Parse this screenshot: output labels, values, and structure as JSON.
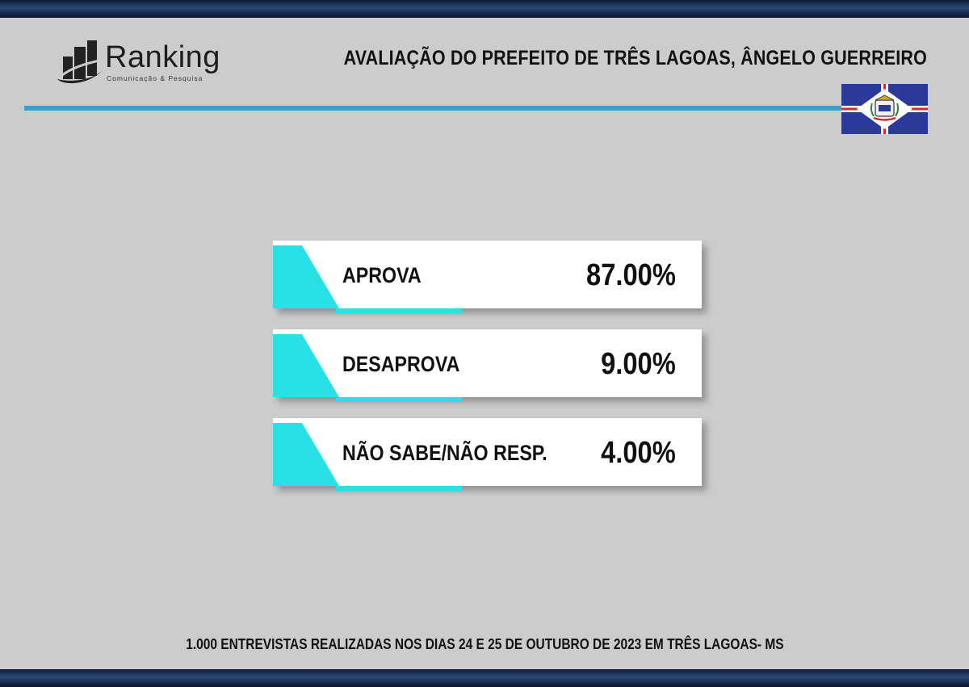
{
  "brand": {
    "name": "Ranking",
    "tagline": "Comunicação & Pesquisa"
  },
  "title": "AVALIAÇÃO DO PREFEITO DE  TRÊS LAGOAS, ÂNGELO GUERREIRO",
  "footer": "1.000 ENTREVISTAS REALIZADAS NOS DIAS 24 E 25 DE OUTUBRO DE 2023 EM TRÊS LAGOAS- MS",
  "colors": {
    "background": "#cccccc",
    "accent": "#29e0e6",
    "rule": "#3a9fd0",
    "band": "#1a2d52"
  },
  "chart_data": {
    "type": "table",
    "title": "AVALIAÇÃO DO PREFEITO DE  TRÊS LAGOAS, ÂNGELO GUERREIRO",
    "unit": "%",
    "rows": [
      {
        "label": "APROVA",
        "value": 87.0,
        "display": "87.00%"
      },
      {
        "label": "DESAPROVA",
        "value": 9.0,
        "display": "9.00%"
      },
      {
        "label": "NÃO SABE/NÃO RESP.",
        "value": 4.0,
        "display": "4.00%"
      }
    ]
  }
}
